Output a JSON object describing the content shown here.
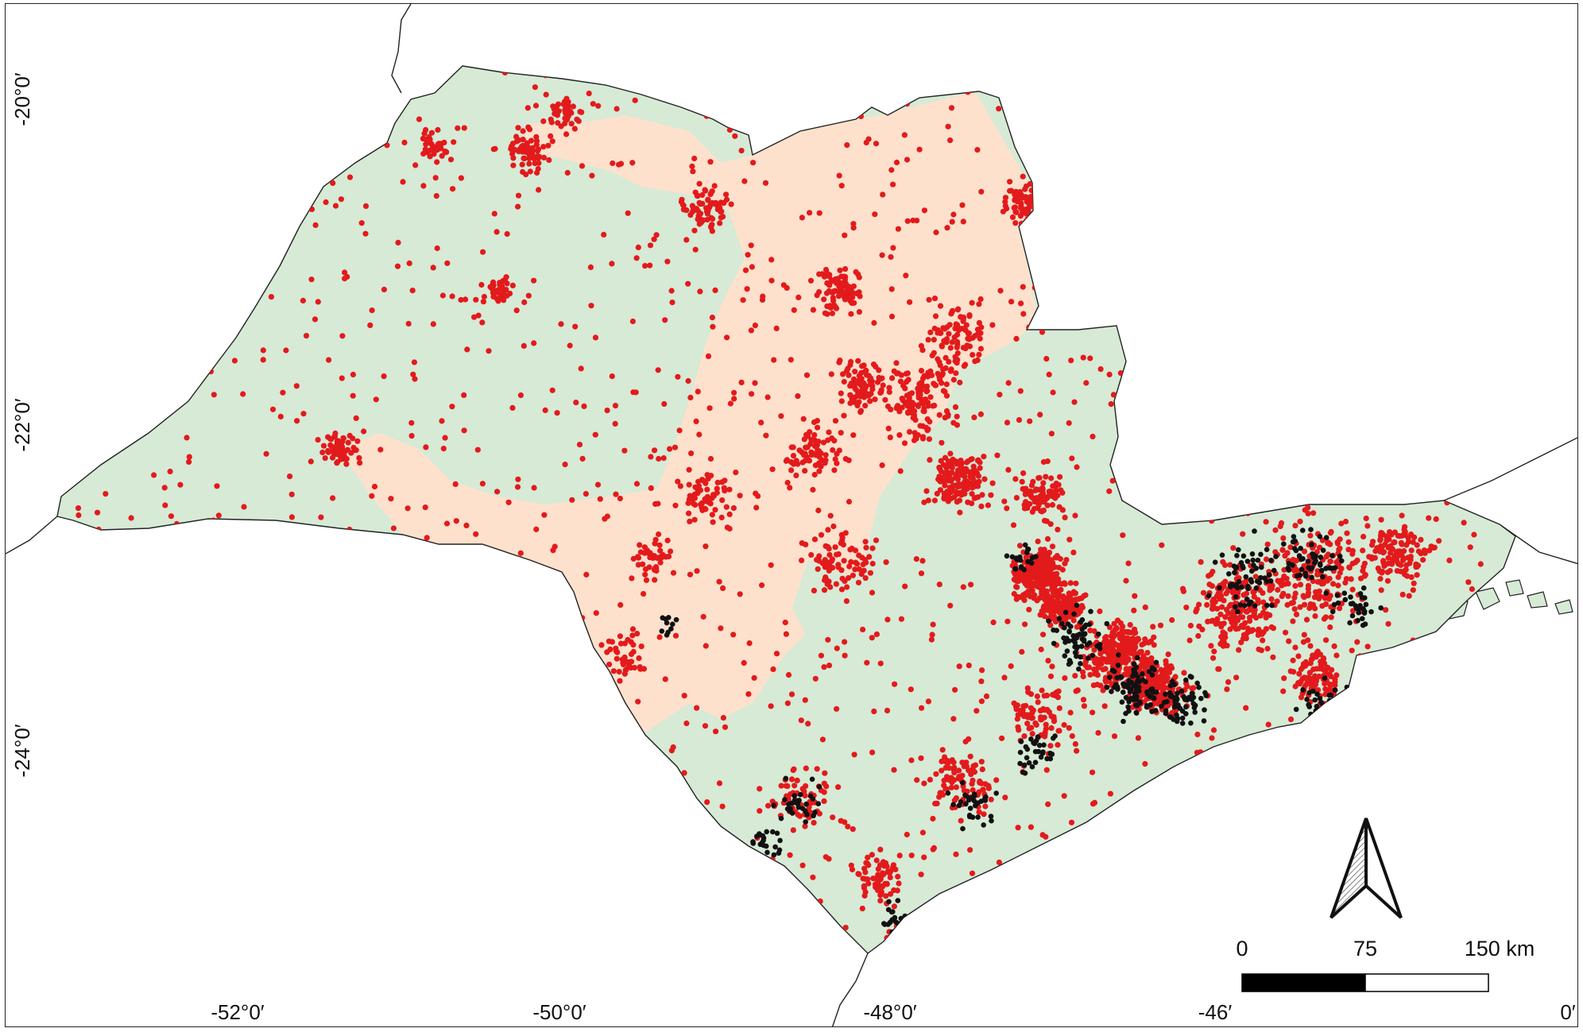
{
  "map": {
    "colors": {
      "land": "#d6ead6",
      "region": "#fde1cc",
      "points_primary": "#e31a1c",
      "points_secondary": "#111111",
      "border": "#222222"
    },
    "lat_labels": [
      "-20°0′",
      "-22°0′",
      "-24°0′"
    ],
    "lon_labels": [
      "-52°0′",
      "-50°0′",
      "-48°0′",
      "-46′",
      "0′"
    ],
    "scale_bar": {
      "ticks": [
        "0",
        "75",
        "150 km"
      ]
    },
    "north_arrow": {
      "icon": "north-arrow-icon"
    }
  }
}
